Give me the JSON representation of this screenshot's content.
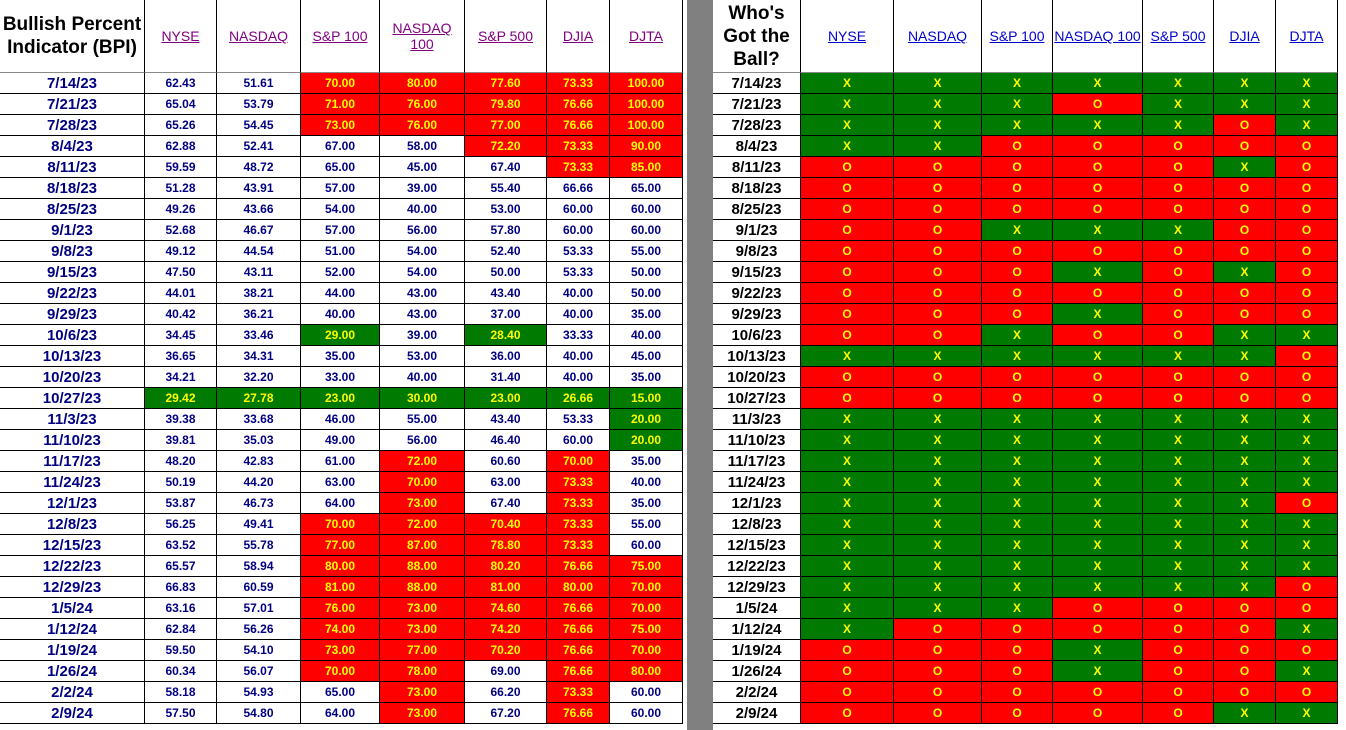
{
  "bpi": {
    "title": "Bullish Percent Indicator (BPI)",
    "columns": [
      "NYSE",
      "NASDAQ",
      "S&P 100",
      "NASDAQ 100",
      "S&P 500",
      "DJIA",
      "DJTA"
    ],
    "rows": [
      {
        "date": "7/14/23",
        "values": [
          "62.43",
          "51.61",
          "70.00",
          "80.00",
          "77.60",
          "73.33",
          "100.00"
        ],
        "colors": [
          "",
          "",
          "red",
          "red",
          "red",
          "red",
          "red"
        ]
      },
      {
        "date": "7/21/23",
        "values": [
          "65.04",
          "53.79",
          "71.00",
          "76.00",
          "79.80",
          "76.66",
          "100.00"
        ],
        "colors": [
          "",
          "",
          "red",
          "red",
          "red",
          "red",
          "red"
        ]
      },
      {
        "date": "7/28/23",
        "values": [
          "65.26",
          "54.45",
          "73.00",
          "76.00",
          "77.00",
          "76.66",
          "100.00"
        ],
        "colors": [
          "",
          "",
          "red",
          "red",
          "red",
          "red",
          "red"
        ]
      },
      {
        "date": "8/4/23",
        "values": [
          "62.88",
          "52.41",
          "67.00",
          "58.00",
          "72.20",
          "73.33",
          "90.00"
        ],
        "colors": [
          "",
          "",
          "",
          "",
          "red",
          "red",
          "red"
        ]
      },
      {
        "date": "8/11/23",
        "values": [
          "59.59",
          "48.72",
          "65.00",
          "45.00",
          "67.40",
          "73.33",
          "85.00"
        ],
        "colors": [
          "",
          "",
          "",
          "",
          "",
          "red",
          "red"
        ]
      },
      {
        "date": "8/18/23",
        "values": [
          "51.28",
          "43.91",
          "57.00",
          "39.00",
          "55.40",
          "66.66",
          "65.00"
        ],
        "colors": [
          "",
          "",
          "",
          "",
          "",
          "",
          ""
        ]
      },
      {
        "date": "8/25/23",
        "values": [
          "49.26",
          "43.66",
          "54.00",
          "40.00",
          "53.00",
          "60.00",
          "60.00"
        ],
        "colors": [
          "",
          "",
          "",
          "",
          "",
          "",
          ""
        ]
      },
      {
        "date": "9/1/23",
        "values": [
          "52.68",
          "46.67",
          "57.00",
          "56.00",
          "57.80",
          "60.00",
          "60.00"
        ],
        "colors": [
          "",
          "",
          "",
          "",
          "",
          "",
          ""
        ]
      },
      {
        "date": "9/8/23",
        "values": [
          "49.12",
          "44.54",
          "51.00",
          "54.00",
          "52.40",
          "53.33",
          "55.00"
        ],
        "colors": [
          "",
          "",
          "",
          "",
          "",
          "",
          ""
        ]
      },
      {
        "date": "9/15/23",
        "values": [
          "47.50",
          "43.11",
          "52.00",
          "54.00",
          "50.00",
          "53.33",
          "50.00"
        ],
        "colors": [
          "",
          "",
          "",
          "",
          "",
          "",
          ""
        ]
      },
      {
        "date": "9/22/23",
        "values": [
          "44.01",
          "38.21",
          "44.00",
          "43.00",
          "43.40",
          "40.00",
          "50.00"
        ],
        "colors": [
          "",
          "",
          "",
          "",
          "",
          "",
          ""
        ]
      },
      {
        "date": "9/29/23",
        "values": [
          "40.42",
          "36.21",
          "40.00",
          "43.00",
          "37.00",
          "40.00",
          "35.00"
        ],
        "colors": [
          "",
          "",
          "",
          "",
          "",
          "",
          ""
        ]
      },
      {
        "date": "10/6/23",
        "values": [
          "34.45",
          "33.46",
          "29.00",
          "39.00",
          "28.40",
          "33.33",
          "40.00"
        ],
        "colors": [
          "",
          "",
          "green",
          "",
          "green",
          "",
          ""
        ]
      },
      {
        "date": "10/13/23",
        "values": [
          "36.65",
          "34.31",
          "35.00",
          "53.00",
          "36.00",
          "40.00",
          "45.00"
        ],
        "colors": [
          "",
          "",
          "",
          "",
          "",
          "",
          ""
        ]
      },
      {
        "date": "10/20/23",
        "values": [
          "34.21",
          "32.20",
          "33.00",
          "40.00",
          "31.40",
          "40.00",
          "35.00"
        ],
        "colors": [
          "",
          "",
          "",
          "",
          "",
          "",
          ""
        ]
      },
      {
        "date": "10/27/23",
        "values": [
          "29.42",
          "27.78",
          "23.00",
          "30.00",
          "23.00",
          "26.66",
          "15.00"
        ],
        "colors": [
          "green",
          "green",
          "green",
          "green",
          "green",
          "green",
          "green"
        ]
      },
      {
        "date": "11/3/23",
        "values": [
          "39.38",
          "33.68",
          "46.00",
          "55.00",
          "43.40",
          "53.33",
          "20.00"
        ],
        "colors": [
          "",
          "",
          "",
          "",
          "",
          "",
          "green"
        ]
      },
      {
        "date": "11/10/23",
        "values": [
          "39.81",
          "35.03",
          "49.00",
          "56.00",
          "46.40",
          "60.00",
          "20.00"
        ],
        "colors": [
          "",
          "",
          "",
          "",
          "",
          "",
          "green"
        ]
      },
      {
        "date": "11/17/23",
        "values": [
          "48.20",
          "42.83",
          "61.00",
          "72.00",
          "60.60",
          "70.00",
          "35.00"
        ],
        "colors": [
          "",
          "",
          "",
          "red",
          "",
          "red",
          ""
        ]
      },
      {
        "date": "11/24/23",
        "values": [
          "50.19",
          "44.20",
          "63.00",
          "70.00",
          "63.00",
          "73.33",
          "40.00"
        ],
        "colors": [
          "",
          "",
          "",
          "red",
          "",
          "red",
          ""
        ]
      },
      {
        "date": "12/1/23",
        "values": [
          "53.87",
          "46.73",
          "64.00",
          "73.00",
          "67.40",
          "73.33",
          "35.00"
        ],
        "colors": [
          "",
          "",
          "",
          "red",
          "",
          "red",
          ""
        ]
      },
      {
        "date": "12/8/23",
        "values": [
          "56.25",
          "49.41",
          "70.00",
          "72.00",
          "70.40",
          "73.33",
          "55.00"
        ],
        "colors": [
          "",
          "",
          "red",
          "red",
          "red",
          "red",
          ""
        ]
      },
      {
        "date": "12/15/23",
        "values": [
          "63.52",
          "55.78",
          "77.00",
          "87.00",
          "78.80",
          "73.33",
          "60.00"
        ],
        "colors": [
          "",
          "",
          "red",
          "red",
          "red",
          "red",
          ""
        ]
      },
      {
        "date": "12/22/23",
        "values": [
          "65.57",
          "58.94",
          "80.00",
          "88.00",
          "80.20",
          "76.66",
          "75.00"
        ],
        "colors": [
          "",
          "",
          "red",
          "red",
          "red",
          "red",
          "red"
        ]
      },
      {
        "date": "12/29/23",
        "values": [
          "66.83",
          "60.59",
          "81.00",
          "88.00",
          "81.00",
          "80.00",
          "70.00"
        ],
        "colors": [
          "",
          "",
          "red",
          "red",
          "red",
          "red",
          "red"
        ]
      },
      {
        "date": "1/5/24",
        "values": [
          "63.16",
          "57.01",
          "76.00",
          "73.00",
          "74.60",
          "76.66",
          "70.00"
        ],
        "colors": [
          "",
          "",
          "red",
          "red",
          "red",
          "red",
          "red"
        ]
      },
      {
        "date": "1/12/24",
        "values": [
          "62.84",
          "56.26",
          "74.00",
          "73.00",
          "74.20",
          "76.66",
          "75.00"
        ],
        "colors": [
          "",
          "",
          "red",
          "red",
          "red",
          "red",
          "red"
        ]
      },
      {
        "date": "1/19/24",
        "values": [
          "59.50",
          "54.10",
          "73.00",
          "77.00",
          "70.20",
          "76.66",
          "70.00"
        ],
        "colors": [
          "",
          "",
          "red",
          "red",
          "red",
          "red",
          "red"
        ]
      },
      {
        "date": "1/26/24",
        "values": [
          "60.34",
          "56.07",
          "70.00",
          "78.00",
          "69.00",
          "76.66",
          "80.00"
        ],
        "colors": [
          "",
          "",
          "red",
          "red",
          "",
          "red",
          "red"
        ]
      },
      {
        "date": "2/2/24",
        "values": [
          "58.18",
          "54.93",
          "65.00",
          "73.00",
          "66.20",
          "73.33",
          "60.00"
        ],
        "colors": [
          "",
          "",
          "",
          "red",
          "",
          "red",
          ""
        ]
      },
      {
        "date": "2/9/24",
        "values": [
          "57.50",
          "54.80",
          "64.00",
          "73.00",
          "67.20",
          "76.66",
          "60.00"
        ],
        "colors": [
          "",
          "",
          "",
          "red",
          "",
          "red",
          ""
        ]
      }
    ]
  },
  "ball": {
    "title": "Who's Got the Ball?",
    "columns": [
      "NYSE",
      "NASDAQ",
      "S&P 100",
      "NASDAQ 100",
      "S&P 500",
      "DJIA",
      "DJTA"
    ],
    "rows": [
      {
        "date": "7/14/23",
        "signals": [
          "X",
          "X",
          "X",
          "X",
          "X",
          "X",
          "X"
        ]
      },
      {
        "date": "7/21/23",
        "signals": [
          "X",
          "X",
          "X",
          "O",
          "X",
          "X",
          "X"
        ]
      },
      {
        "date": "7/28/23",
        "signals": [
          "X",
          "X",
          "X",
          "X",
          "X",
          "O",
          "X"
        ]
      },
      {
        "date": "8/4/23",
        "signals": [
          "X",
          "X",
          "O",
          "O",
          "O",
          "O",
          "O"
        ]
      },
      {
        "date": "8/11/23",
        "signals": [
          "O",
          "O",
          "O",
          "O",
          "O",
          "X",
          "O"
        ]
      },
      {
        "date": "8/18/23",
        "signals": [
          "O",
          "O",
          "O",
          "O",
          "O",
          "O",
          "O"
        ]
      },
      {
        "date": "8/25/23",
        "signals": [
          "O",
          "O",
          "O",
          "O",
          "O",
          "O",
          "O"
        ]
      },
      {
        "date": "9/1/23",
        "signals": [
          "O",
          "O",
          "X",
          "X",
          "X",
          "O",
          "O"
        ]
      },
      {
        "date": "9/8/23",
        "signals": [
          "O",
          "O",
          "O",
          "O",
          "O",
          "O",
          "O"
        ]
      },
      {
        "date": "9/15/23",
        "signals": [
          "O",
          "O",
          "O",
          "X",
          "O",
          "X",
          "O"
        ]
      },
      {
        "date": "9/22/23",
        "signals": [
          "O",
          "O",
          "O",
          "O",
          "O",
          "O",
          "O"
        ]
      },
      {
        "date": "9/29/23",
        "signals": [
          "O",
          "O",
          "O",
          "X",
          "O",
          "O",
          "O"
        ]
      },
      {
        "date": "10/6/23",
        "signals": [
          "O",
          "O",
          "X",
          "O",
          "O",
          "X",
          "X"
        ]
      },
      {
        "date": "10/13/23",
        "signals": [
          "X",
          "X",
          "X",
          "X",
          "X",
          "X",
          "O"
        ]
      },
      {
        "date": "10/20/23",
        "signals": [
          "O",
          "O",
          "O",
          "O",
          "O",
          "O",
          "O"
        ]
      },
      {
        "date": "10/27/23",
        "signals": [
          "O",
          "O",
          "O",
          "O",
          "O",
          "O",
          "O"
        ]
      },
      {
        "date": "11/3/23",
        "signals": [
          "X",
          "X",
          "X",
          "X",
          "X",
          "X",
          "X"
        ]
      },
      {
        "date": "11/10/23",
        "signals": [
          "X",
          "X",
          "X",
          "X",
          "X",
          "X",
          "X"
        ]
      },
      {
        "date": "11/17/23",
        "signals": [
          "X",
          "X",
          "X",
          "X",
          "X",
          "X",
          "X"
        ]
      },
      {
        "date": "11/24/23",
        "signals": [
          "X",
          "X",
          "X",
          "X",
          "X",
          "X",
          "X"
        ]
      },
      {
        "date": "12/1/23",
        "signals": [
          "X",
          "X",
          "X",
          "X",
          "X",
          "X",
          "O"
        ]
      },
      {
        "date": "12/8/23",
        "signals": [
          "X",
          "X",
          "X",
          "X",
          "X",
          "X",
          "X"
        ]
      },
      {
        "date": "12/15/23",
        "signals": [
          "X",
          "X",
          "X",
          "X",
          "X",
          "X",
          "X"
        ]
      },
      {
        "date": "12/22/23",
        "signals": [
          "X",
          "X",
          "X",
          "X",
          "X",
          "X",
          "X"
        ]
      },
      {
        "date": "12/29/23",
        "signals": [
          "X",
          "X",
          "X",
          "X",
          "X",
          "X",
          "O"
        ]
      },
      {
        "date": "1/5/24",
        "signals": [
          "X",
          "X",
          "X",
          "O",
          "O",
          "O",
          "O"
        ]
      },
      {
        "date": "1/12/24",
        "signals": [
          "X",
          "O",
          "O",
          "O",
          "O",
          "O",
          "X"
        ]
      },
      {
        "date": "1/19/24",
        "signals": [
          "O",
          "O",
          "O",
          "X",
          "O",
          "O",
          "O"
        ]
      },
      {
        "date": "1/26/24",
        "signals": [
          "O",
          "O",
          "O",
          "X",
          "O",
          "O",
          "X"
        ]
      },
      {
        "date": "2/2/24",
        "signals": [
          "O",
          "O",
          "O",
          "O",
          "O",
          "O",
          "O"
        ]
      },
      {
        "date": "2/9/24",
        "signals": [
          "O",
          "O",
          "O",
          "O",
          "O",
          "X",
          "X"
        ]
      }
    ]
  },
  "colors": {
    "bullish_red": "#ff0000",
    "bearish_green": "#007a00",
    "signal_text": "#ffff00",
    "number_text": "#000080",
    "divider": "#808080"
  }
}
